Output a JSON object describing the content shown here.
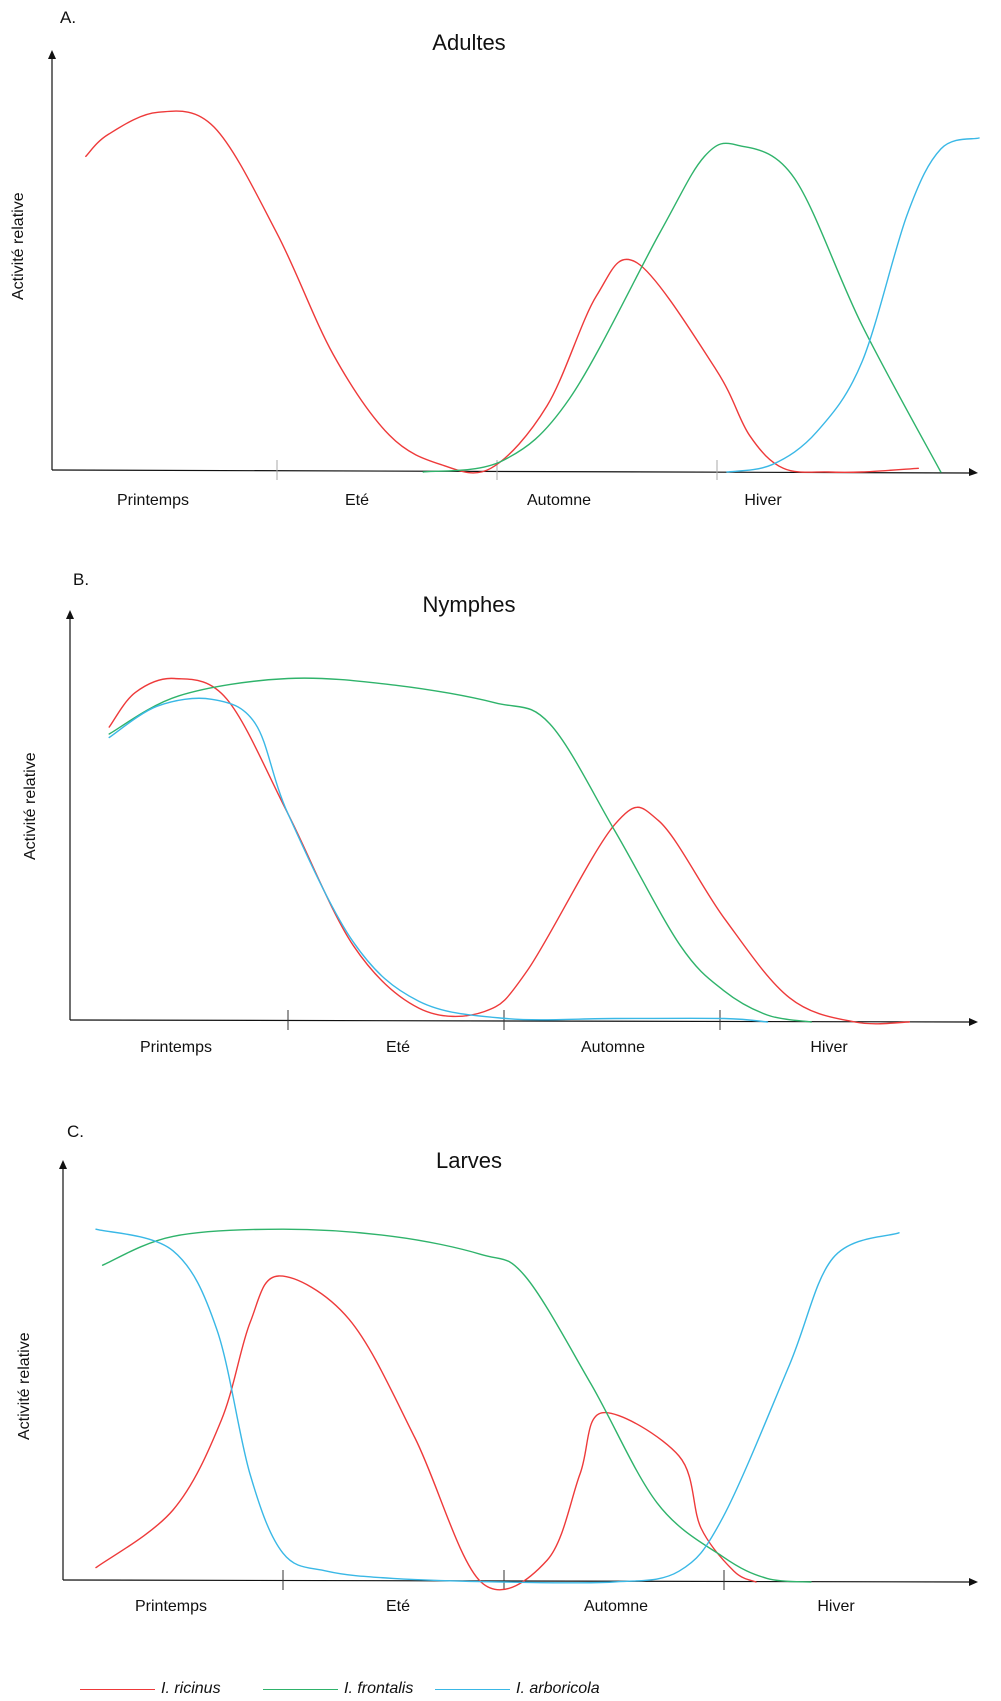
{
  "legend": [
    {
      "name": "I. ricinus",
      "color": "#ee3a3a"
    },
    {
      "name": "I. frontalis",
      "color": "#2fb36b"
    },
    {
      "name": "I. arboricola",
      "color": "#3ab8e6"
    }
  ],
  "chart_data": [
    {
      "type": "line",
      "panel_label": "A.",
      "title": "Adultes",
      "ylabel": "Activité relative",
      "categories": [
        "Printemps",
        "Eté",
        "Automne",
        "Hiver"
      ],
      "x_range": [
        0,
        4.1
      ],
      "ylim": [
        0,
        100
      ],
      "grid": false,
      "series": [
        {
          "name": "I. ricinus",
          "color": "#ee3a3a",
          "x": [
            0.15,
            0.25,
            0.47,
            0.72,
            1.0,
            1.25,
            1.5,
            1.73,
            1.95,
            2.2,
            2.42,
            2.6,
            2.95,
            3.1,
            3.25,
            3.45,
            3.6,
            3.85
          ],
          "y": [
            86,
            92,
            98,
            94,
            65,
            32,
            10,
            2,
            1,
            18,
            48,
            57,
            28,
            10,
            1,
            0,
            0,
            1
          ]
        },
        {
          "name": "I. frontalis",
          "color": "#2fb36b",
          "x": [
            1.65,
            2.0,
            2.3,
            2.7,
            2.9,
            3.05,
            3.3,
            3.6,
            3.95
          ],
          "y": [
            0,
            3,
            20,
            65,
            86,
            89,
            80,
            40,
            0
          ]
        },
        {
          "name": "I. arboricola",
          "color": "#3ab8e6",
          "x": [
            3.0,
            3.2,
            3.4,
            3.6,
            3.8,
            3.95,
            4.12
          ],
          "y": [
            0,
            2,
            11,
            30,
            70,
            88,
            91
          ]
        }
      ]
    },
    {
      "type": "line",
      "panel_label": "B.",
      "title": "Nymphes",
      "ylabel": "Activité relative",
      "categories": [
        "Printemps",
        "Eté",
        "Automne",
        "Hiver"
      ],
      "x_range": [
        0,
        4.2
      ],
      "ylim": [
        0,
        100
      ],
      "grid": false,
      "series": [
        {
          "name": "I. ricinus",
          "color": "#ee3a3a",
          "x": [
            0.18,
            0.3,
            0.48,
            0.72,
            1.0,
            1.3,
            1.6,
            1.9,
            2.1,
            2.5,
            2.7,
            3.0,
            3.3,
            3.6,
            3.85
          ],
          "y": [
            85,
            95,
            99,
            93,
            60,
            22,
            4,
            3,
            15,
            57,
            58,
            30,
            7,
            0,
            0
          ]
        },
        {
          "name": "I. frontalis",
          "color": "#2fb36b",
          "x": [
            0.18,
            0.5,
            1.0,
            1.5,
            1.95,
            2.2,
            2.5,
            2.8,
            3.0,
            3.2,
            3.4
          ],
          "y": [
            83,
            94,
            99,
            97,
            92,
            86,
            55,
            22,
            9,
            2,
            0
          ]
        },
        {
          "name": "I. arboricola",
          "color": "#3ab8e6",
          "x": [
            0.18,
            0.4,
            0.65,
            0.85,
            1.0,
            1.3,
            1.6,
            2.0,
            2.5,
            3.0,
            3.2
          ],
          "y": [
            82,
            91,
            93,
            86,
            60,
            23,
            6,
            1,
            1,
            1,
            0
          ]
        }
      ]
    },
    {
      "type": "line",
      "panel_label": "C.",
      "title": "Larves",
      "ylabel": "Activité relative",
      "categories": [
        "Printemps",
        "Eté",
        "Automne",
        "Hiver"
      ],
      "x_range": [
        0,
        4.1
      ],
      "ylim": [
        0,
        100
      ],
      "grid": false,
      "series": [
        {
          "name": "I. ricinus",
          "color": "#ee3a3a",
          "x": [
            0.15,
            0.5,
            0.72,
            0.85,
            0.98,
            1.3,
            1.6,
            1.9,
            2.2,
            2.35,
            2.45,
            2.8,
            2.9,
            3.05,
            3.15
          ],
          "y": [
            4,
            20,
            45,
            72,
            85,
            73,
            40,
            0,
            6,
            30,
            47,
            35,
            15,
            3,
            0
          ]
        },
        {
          "name": "I. frontalis",
          "color": "#2fb36b",
          "x": [
            0.18,
            0.5,
            1.0,
            1.5,
            1.9,
            2.1,
            2.4,
            2.7,
            3.0,
            3.2,
            3.4
          ],
          "y": [
            88,
            96,
            98,
            96,
            91,
            85,
            55,
            22,
            7,
            1,
            0
          ]
        },
        {
          "name": "I. arboricola",
          "color": "#3ab8e6",
          "x": [
            0.15,
            0.5,
            0.7,
            0.85,
            1.0,
            1.2,
            1.5,
            2.0,
            2.5,
            2.8,
            3.0,
            3.3,
            3.5,
            3.8
          ],
          "y": [
            98,
            92,
            70,
            30,
            8,
            3,
            1,
            0,
            0,
            3,
            18,
            60,
            90,
            97
          ]
        }
      ]
    }
  ]
}
